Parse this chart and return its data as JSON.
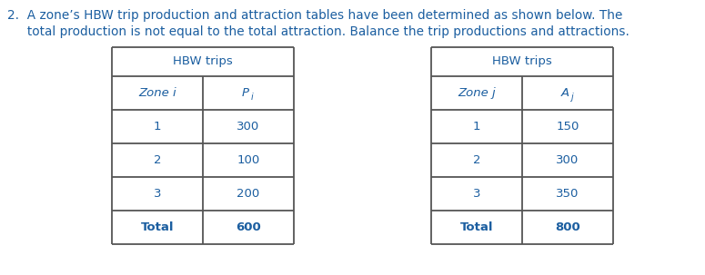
{
  "title_line1": "2.  A zone’s HBW trip production and attraction tables have been determined as shown below. The",
  "title_line2": "     total production is not equal to the total attraction. Balance the trip productions and attractions.",
  "title_color": "#1B5EA0",
  "title_fontsize": 9.8,
  "table1_header": "HBW trips",
  "table1_rows": [
    [
      "1",
      "300"
    ],
    [
      "2",
      "100"
    ],
    [
      "3",
      "200"
    ],
    [
      "Total",
      "600"
    ]
  ],
  "table2_header": "HBW trips",
  "table2_rows": [
    [
      "1",
      "150"
    ],
    [
      "2",
      "300"
    ],
    [
      "3",
      "350"
    ],
    [
      "Total",
      "800"
    ]
  ],
  "bg_color": "#ffffff",
  "table_line_color": "#555555",
  "text_color": "#1B5EA0",
  "data_text_color": "#1B5EA0"
}
